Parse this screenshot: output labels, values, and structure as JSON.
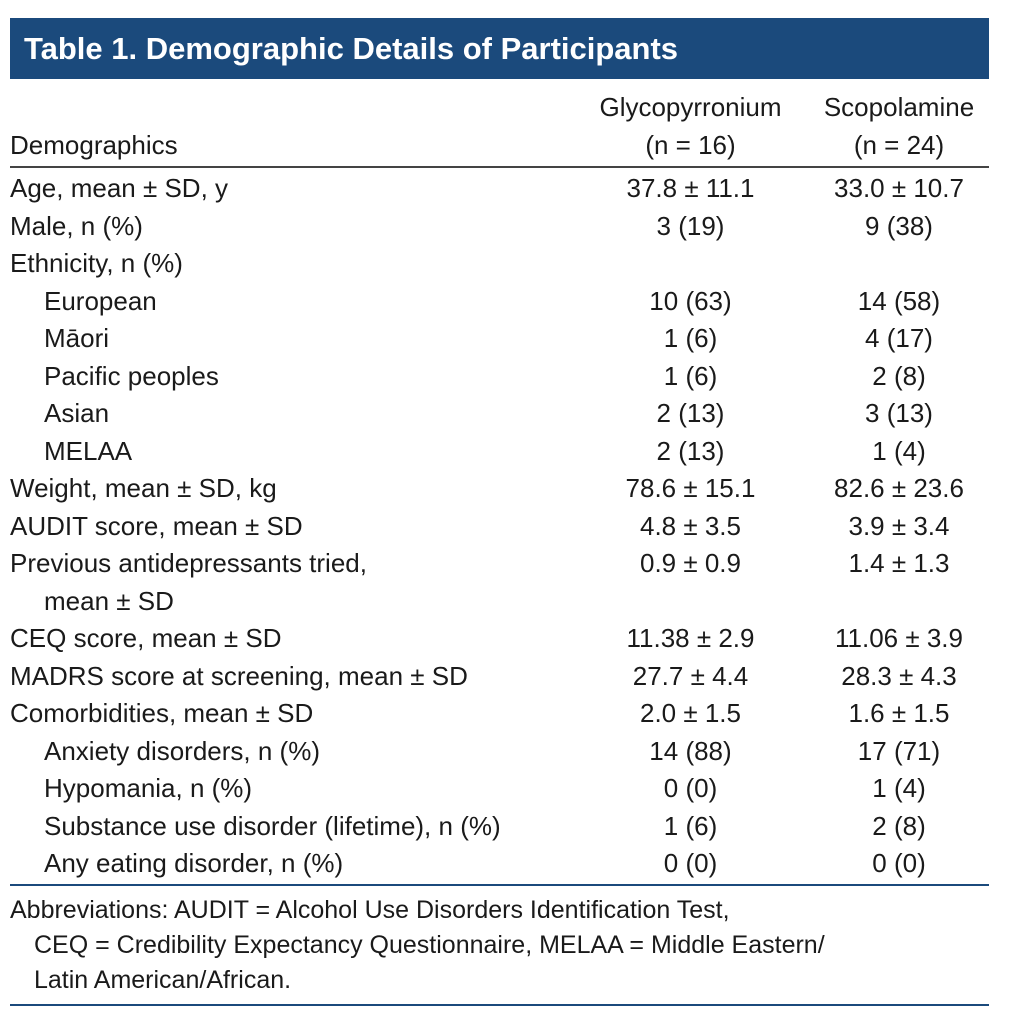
{
  "title": "Table 1. Demographic Details of Participants",
  "header": {
    "row_label": "Demographics",
    "col1_name": "Glycopyrronium",
    "col1_n": "(n = 16)",
    "col2_name": "Scopolamine",
    "col2_n": "(n = 24)"
  },
  "rows": [
    {
      "label": "Age, mean ± SD, y",
      "g": "37.8 ± 11.1",
      "s": "33.0 ± 10.7"
    },
    {
      "label": "Male, n (%)",
      "g": "3 (19)",
      "s": "9 (38)"
    },
    {
      "label": "Ethnicity, n (%)",
      "g": "",
      "s": ""
    },
    {
      "label": "European",
      "g": "10 (63)",
      "s": "14 (58)"
    },
    {
      "label": "Māori",
      "g": "1 (6)",
      "s": "4 (17)"
    },
    {
      "label": "Pacific peoples",
      "g": "1 (6)",
      "s": "2 (8)"
    },
    {
      "label": "Asian",
      "g": "2 (13)",
      "s": "3 (13)"
    },
    {
      "label": "MELAA",
      "g": "2 (13)",
      "s": "1 (4)"
    },
    {
      "label": "Weight, mean ± SD, kg",
      "g": "78.6 ± 15.1",
      "s": "82.6 ± 23.6"
    },
    {
      "label": "AUDIT score, mean ± SD",
      "g": "4.8 ± 3.5",
      "s": "3.9 ± 3.4"
    },
    {
      "label": "Previous antidepressants tried,",
      "label_cont": "mean ± SD",
      "g": "0.9 ± 0.9",
      "s": "1.4 ± 1.3"
    },
    {
      "label": "CEQ score, mean ± SD",
      "g": "11.38 ± 2.9",
      "s": "11.06 ± 3.9"
    },
    {
      "label": "MADRS score at screening, mean ± SD",
      "g": "27.7 ± 4.4",
      "s": "28.3 ± 4.3"
    },
    {
      "label": "Comorbidities, mean ± SD",
      "g": "2.0 ± 1.5",
      "s": "1.6 ± 1.5"
    },
    {
      "label": "Anxiety disorders, n (%)",
      "g": "14 (88)",
      "s": "17 (71)"
    },
    {
      "label": "Hypomania, n (%)",
      "g": "0 (0)",
      "s": "1 (4)"
    },
    {
      "label": "Substance use disorder (lifetime), n (%)",
      "g": "1 (6)",
      "s": "2 (8)"
    },
    {
      "label": "Any eating disorder, n (%)",
      "g": "0 (0)",
      "s": "0 (0)"
    }
  ],
  "footnote": {
    "line1": "Abbreviations: AUDIT = Alcohol Use Disorders Identification Test,",
    "line2": "CEQ = Credibility Expectancy Questionnaire, MELAA = Middle Eastern/",
    "line3": "Latin American/African."
  }
}
